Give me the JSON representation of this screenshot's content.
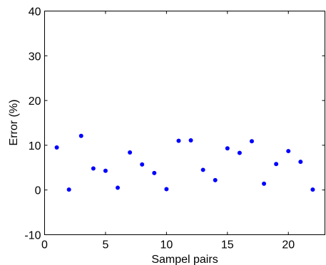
{
  "chart_data": {
    "type": "scatter",
    "title": "",
    "xlabel": "Sampel pairs",
    "ylabel": "Error (%)",
    "xlim": [
      0,
      23
    ],
    "ylim": [
      -10,
      40
    ],
    "xticks": [
      "0",
      "5",
      "10",
      "15",
      "20"
    ],
    "yticks": [
      "-10",
      "0",
      "10",
      "20",
      "30",
      "40"
    ],
    "grid": false,
    "marker_color": "#0000ff",
    "series": [
      {
        "points": [
          {
            "x": 1,
            "y": 9.5
          },
          {
            "x": 2,
            "y": 0.1
          },
          {
            "x": 3,
            "y": 12.1
          },
          {
            "x": 4,
            "y": 4.8
          },
          {
            "x": 5,
            "y": 4.3
          },
          {
            "x": 6,
            "y": 0.5
          },
          {
            "x": 7,
            "y": 8.4
          },
          {
            "x": 8,
            "y": 5.7
          },
          {
            "x": 9,
            "y": 3.8
          },
          {
            "x": 10,
            "y": 0.2
          },
          {
            "x": 11,
            "y": 11.0
          },
          {
            "x": 12,
            "y": 11.1
          },
          {
            "x": 13,
            "y": 4.5
          },
          {
            "x": 14,
            "y": 2.2
          },
          {
            "x": 15,
            "y": 9.3
          },
          {
            "x": 16,
            "y": 8.3
          },
          {
            "x": 17,
            "y": 10.9
          },
          {
            "x": 18,
            "y": 1.4
          },
          {
            "x": 19,
            "y": 5.8
          },
          {
            "x": 20,
            "y": 8.7
          },
          {
            "x": 21,
            "y": 6.3
          },
          {
            "x": 22,
            "y": 0.1
          }
        ]
      }
    ]
  }
}
